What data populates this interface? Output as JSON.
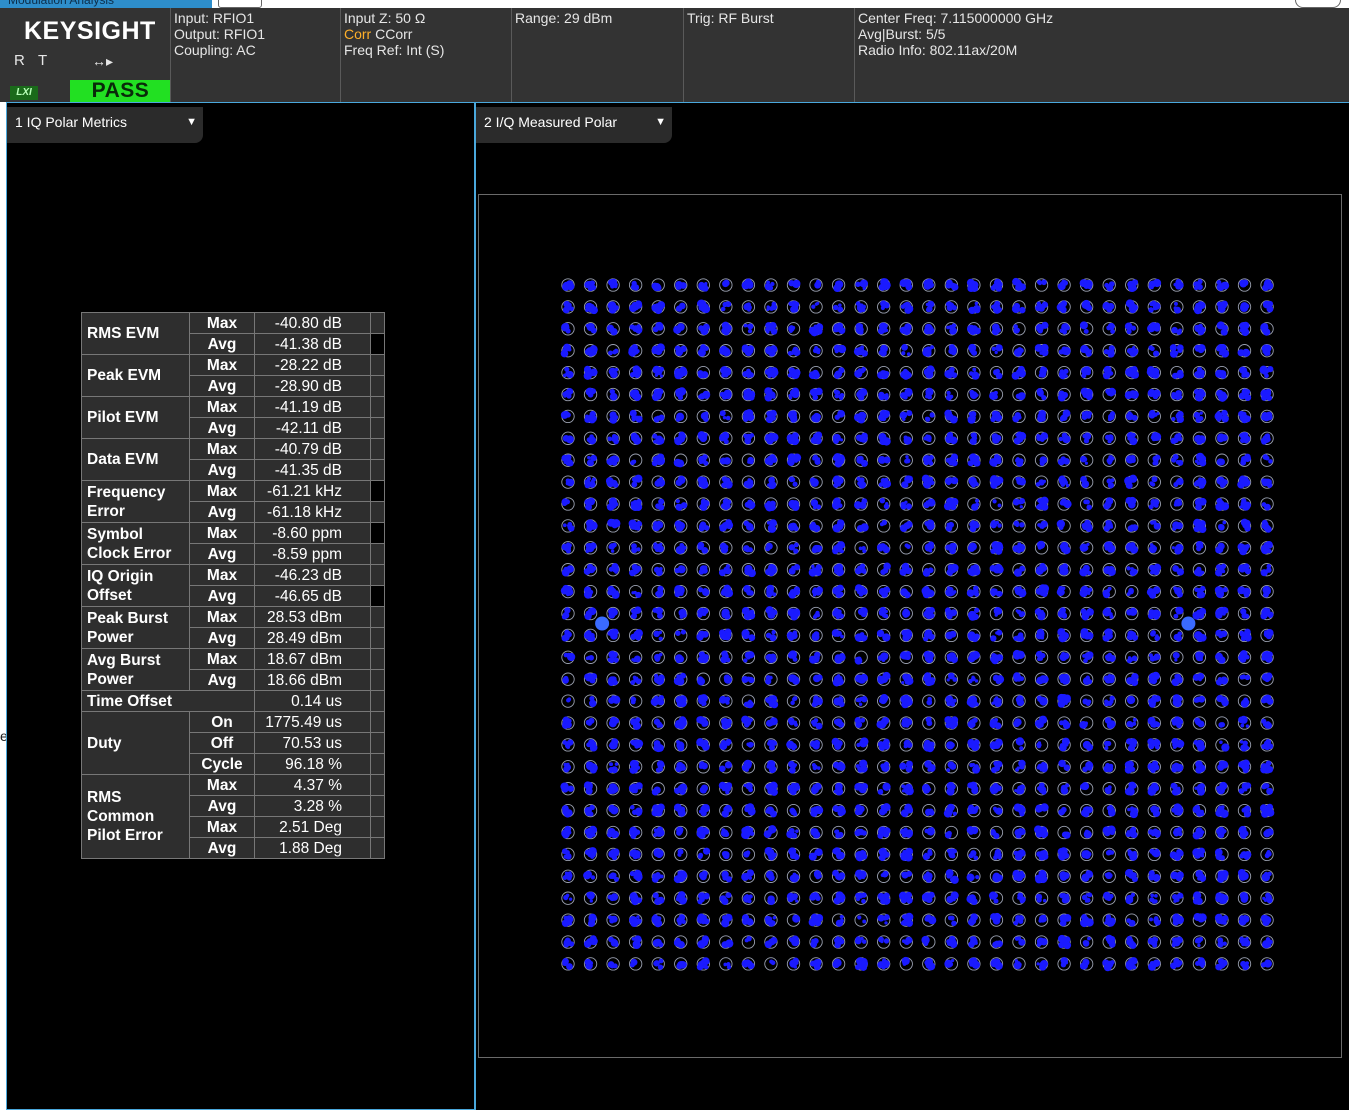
{
  "mode_tab": "Modulation Analysis",
  "header": {
    "logo": "KEYSIGHT",
    "status_r": "R",
    "status_t": "T",
    "lxi": "LXI",
    "pass": "PASS",
    "input": [
      "Input: RFIO1",
      "Output: RFIO1",
      "Coupling: AC"
    ],
    "impedance": "Input Z: 50 Ω",
    "corr_tag": "Corr",
    "corr_value": " CCorr",
    "freq_ref": "Freq Ref: Int (S)",
    "range": "Range: 29 dBm",
    "trig": "Trig: RF Burst",
    "center_freq": "Center Freq: 7.115000000 GHz",
    "avg_burst": "Avg|Burst: 5/5",
    "radio_info": "Radio Info: 802.11ax/20M"
  },
  "left_window": {
    "title": "1 IQ Polar Metrics"
  },
  "right_window": {
    "title": "2 I/Q Measured Polar"
  },
  "metrics": [
    {
      "name": "RMS EVM",
      "rows": [
        {
          "stat": "Max",
          "value": "-40.80 dB"
        },
        {
          "stat": "Avg",
          "value": "-41.38 dB"
        }
      ]
    },
    {
      "name": "Peak EVM",
      "rows": [
        {
          "stat": "Max",
          "value": "-28.22 dB"
        },
        {
          "stat": "Avg",
          "value": "-28.90 dB"
        }
      ]
    },
    {
      "name": "Pilot EVM",
      "rows": [
        {
          "stat": "Max",
          "value": "-41.19 dB"
        },
        {
          "stat": "Avg",
          "value": "-42.11 dB"
        }
      ]
    },
    {
      "name": "Data EVM",
      "rows": [
        {
          "stat": "Max",
          "value": "-40.79 dB"
        },
        {
          "stat": "Avg",
          "value": "-41.35 dB"
        }
      ]
    },
    {
      "name": "Frequency Error",
      "rows": [
        {
          "stat": "Max",
          "value": "-61.21 kHz"
        },
        {
          "stat": "Avg",
          "value": "-61.18 kHz"
        }
      ]
    },
    {
      "name": "Symbol Clock Error",
      "rows": [
        {
          "stat": "Max",
          "value": "-8.60 ppm"
        },
        {
          "stat": "Avg",
          "value": "-8.59 ppm"
        }
      ]
    },
    {
      "name": "IQ Origin Offset",
      "rows": [
        {
          "stat": "Max",
          "value": "-46.23 dB"
        },
        {
          "stat": "Avg",
          "value": "-46.65 dB"
        }
      ]
    },
    {
      "name": "Peak Burst Power",
      "rows": [
        {
          "stat": "Max",
          "value": "28.53 dBm"
        },
        {
          "stat": "Avg",
          "value": "28.49 dBm"
        }
      ]
    },
    {
      "name": "Avg Burst Power",
      "rows": [
        {
          "stat": "Max",
          "value": "18.67 dBm"
        },
        {
          "stat": "Avg",
          "value": "18.66 dBm"
        }
      ]
    },
    {
      "name": "Time Offset",
      "rows": [
        {
          "stat": "",
          "value": "0.14 us"
        }
      ]
    },
    {
      "name": "Duty",
      "rows": [
        {
          "stat": "On",
          "value": "1775.49 us"
        },
        {
          "stat": "Off",
          "value": "70.53 us"
        },
        {
          "stat": "Cycle",
          "value": "96.18 %"
        }
      ]
    },
    {
      "name": "RMS Common Pilot Error",
      "rows": [
        {
          "stat": "Max",
          "value": "4.37 %"
        },
        {
          "stat": "Avg",
          "value": "3.28 %"
        },
        {
          "stat": "Max",
          "value": "2.51  Deg"
        },
        {
          "stat": "Avg",
          "value": "1.88  Deg"
        }
      ]
    }
  ],
  "constellation": {
    "modulation_grid": [
      32,
      32
    ],
    "ring_color": "#9aa0b0",
    "symbol_color": "#1a1aff",
    "pilot_color": "#3a6bff",
    "pilot_points": [
      [
        2,
        15
      ],
      [
        28,
        15
      ]
    ]
  },
  "colors": {
    "accent": "#4aa8dc",
    "pass": "#22e022",
    "corr": "#ffb02a"
  }
}
